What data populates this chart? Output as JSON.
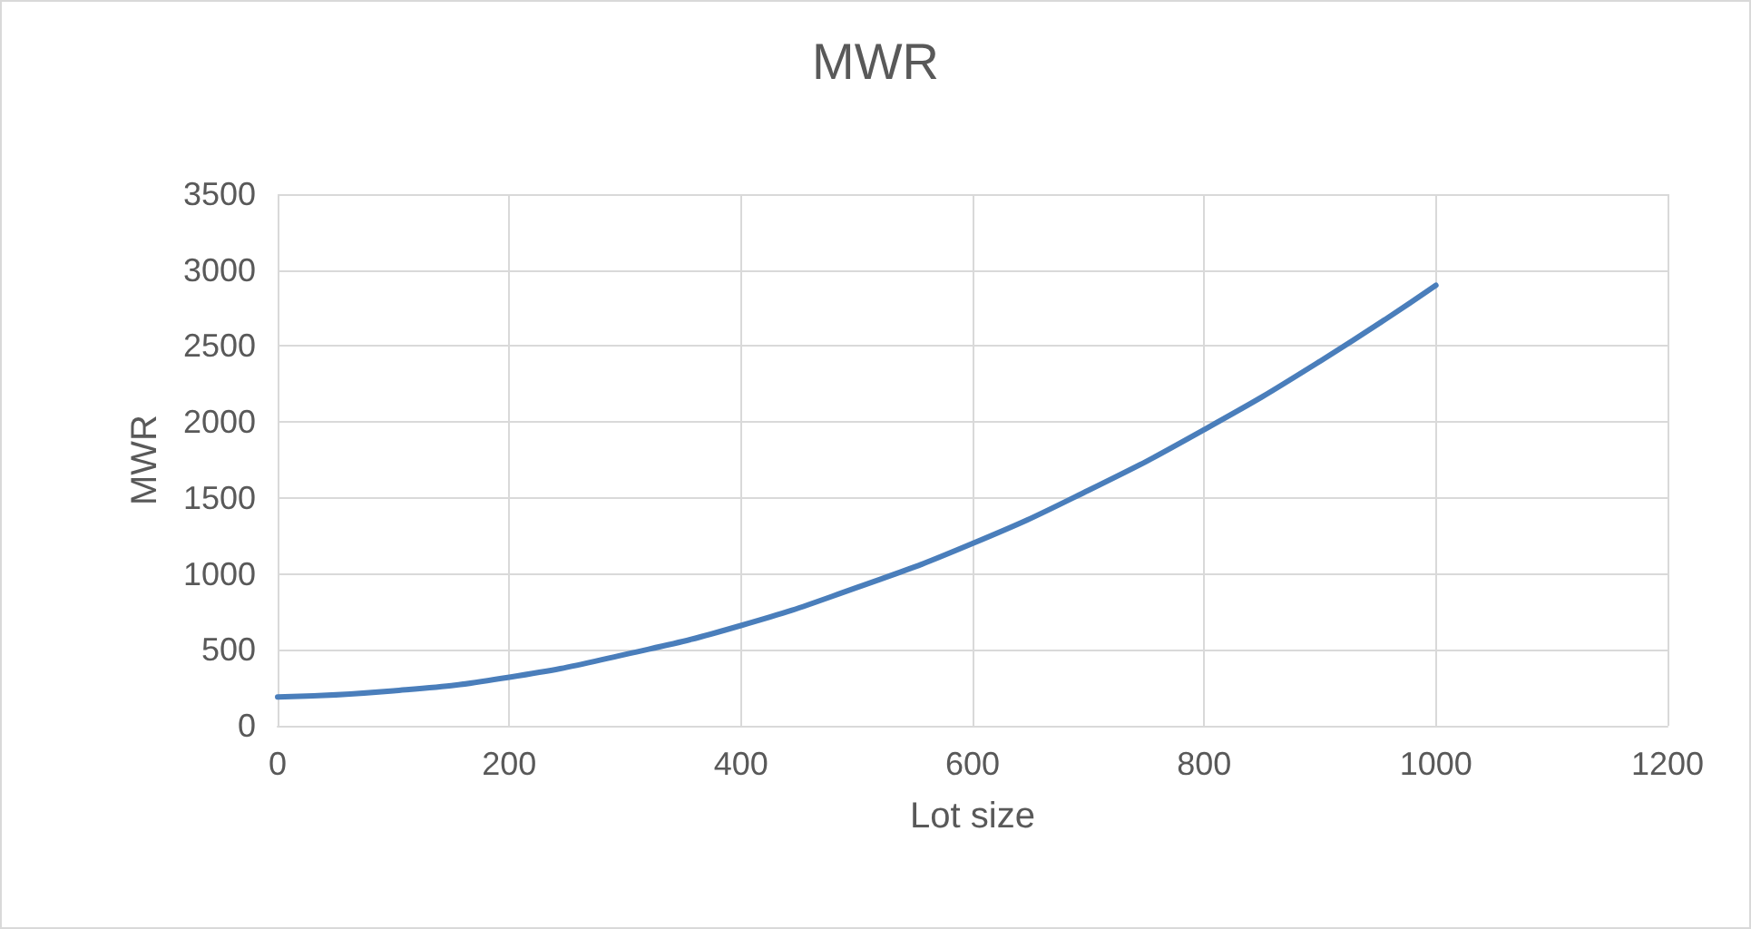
{
  "chart_data": {
    "type": "line",
    "title": "MWR",
    "xlabel": "Lot size",
    "ylabel": "MWR",
    "x": [
      0,
      100,
      200,
      300,
      400,
      500,
      600,
      700,
      800,
      900,
      1000
    ],
    "series": [
      {
        "color": "#4a7ebb",
        "values": [
          190,
          230,
          320,
          470,
          660,
          910,
          1200,
          1550,
          1950,
          2400,
          2900
        ]
      }
    ],
    "xlim": [
      0,
      1200
    ],
    "xticks": [
      0,
      200,
      400,
      600,
      800,
      1000,
      1200
    ],
    "ylim": [
      0,
      3500
    ],
    "yticks": [
      0,
      500,
      1000,
      1500,
      2000,
      2500,
      3000,
      3500
    ],
    "grid": true,
    "marker": "none",
    "line_style": "solid"
  }
}
